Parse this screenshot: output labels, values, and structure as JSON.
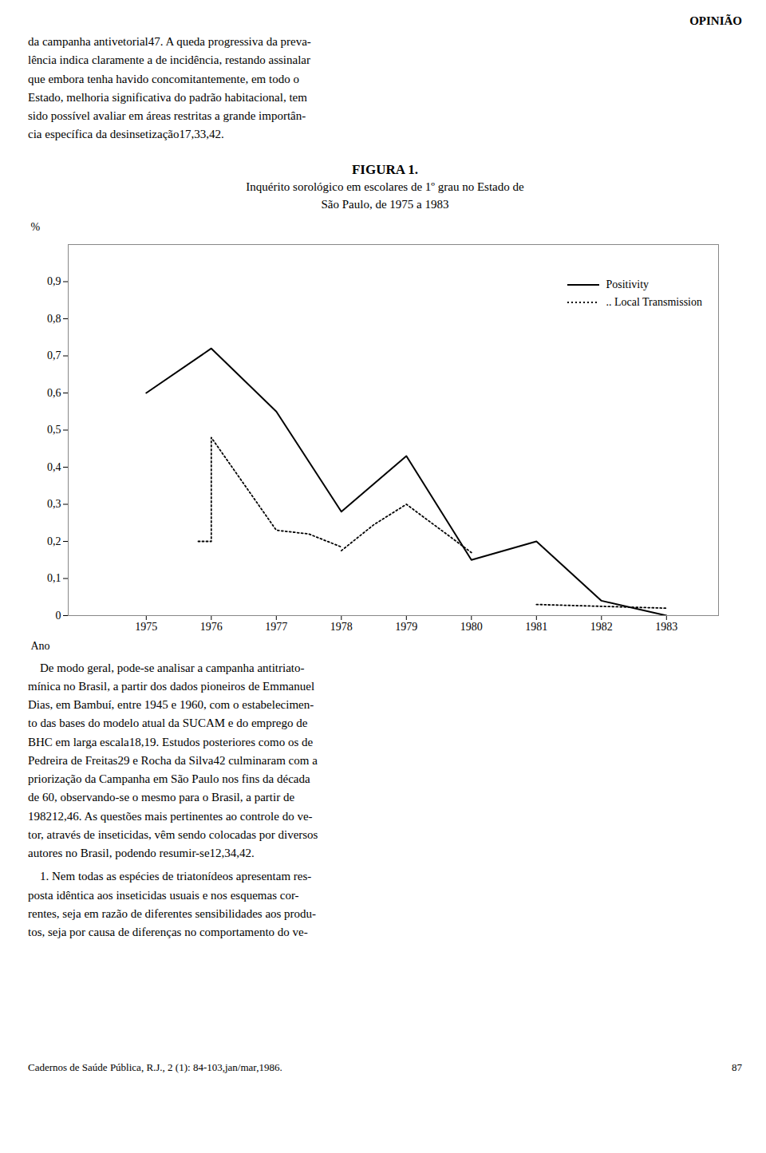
{
  "chart_data": {
    "type": "line",
    "title": "FIGURA 1.",
    "subtitle": [
      "Inquérito sorológico em escolares de 1º grau no Estado de",
      "São Paulo, de 1975 a 1983"
    ],
    "y_label": "%",
    "x_label": "Ano",
    "x": [
      1975,
      1976,
      1977,
      1978,
      1979,
      1980,
      1981,
      1982,
      1983
    ],
    "series": [
      {
        "name": "Positivity",
        "color": "#000000",
        "line_style": "solid",
        "values": [
          0.6,
          0.72,
          0.55,
          0.28,
          0.43,
          0.15,
          0.2,
          0.04,
          0.0
        ]
      },
      {
        "name": ".. Local Transmission",
        "color": "#000000",
        "line_style": "dotted",
        "x": [
          1975.8,
          1976.0,
          1976.0,
          1977.0,
          1977.5,
          1978.0,
          1978.0,
          1978.0,
          1978.5,
          1979.0,
          1979.5,
          1980.0,
          1981.0,
          1981.0,
          1982.0,
          1983.0
        ],
        "values": [
          0.2,
          0.2,
          0.48,
          0.23,
          0.22,
          0.185,
          null,
          0.175,
          0.245,
          0.3,
          0.235,
          0.17,
          null,
          0.03,
          0.025,
          0.02
        ]
      }
    ],
    "xlim": [
      1973.8,
      1983.8
    ],
    "xticks": [
      1975,
      1976,
      1977,
      1978,
      1979,
      1980,
      1981,
      1982,
      1983
    ],
    "ylim": [
      0,
      1.0
    ],
    "yticks": [
      0,
      {
        "value": 0.1,
        "label": "0,1"
      },
      {
        "value": 0.2,
        "label": "0,2"
      },
      {
        "value": 0.3,
        "label": "0,3"
      },
      {
        "value": 0.4,
        "label": "0,4"
      },
      {
        "value": 0.5,
        "label": "0,5"
      },
      {
        "value": 0.6,
        "label": "0,6"
      },
      {
        "value": 0.7,
        "label": "0,7"
      },
      {
        "value": 0.8,
        "label": "0,8"
      },
      {
        "value": 0.9,
        "label": "0,9"
      }
    ],
    "legend": "upper right",
    "annotations": [
      "OPINIÃO",
      "da campanha antivetorial47. A queda progressiva da preva-\nlência indica claramente a de incidência, restando assinalar\nque embora tenha havido concomitantemente, em todo o\nEstado, melhoria significativa do padrão habitacional, tem\nsido possível avaliar em áreas restritas a grande importân-\ncia específica da desinsetização17,33,42.",
      "    De modo geral, pode-se analisar a campanha antitriato-\nmínica no Brasil, a partir dos dados pioneiros de Emmanuel\nDias, em Bambuí, entre 1945 e 1960, com o estabelecimen-\nto das bases do modelo atual da SUCAM e do emprego de\nBHC em larga escala18,19. Estudos posteriores como os de\nPedreira de Freitas29 e Rocha da Silva42 culminaram com a\npriorização da Campanha em São Paulo nos fins da década\nde 60, observando-se o mesmo para o Brasil, a partir de\n198212,46. As questões mais pertinentes ao controle do ve-\ntor, através de inseticidas, vêm sendo colocadas por diversos\nautores no Brasil, podendo resumir-se12,34,42.",
      "    1. Nem todas as espécies de triatonídeos apresentam res-\nposta idêntica aos inseticidas usuais e nos esquemas cor-\nrentes, seja em razão de diferentes sensibilidades aos produ-\ntos, seja por causa de diferenças no comportamento do ve-",
      "Cadernos de Saúde Pública, R.J., 2 (1): 84-103,jan/mar,1986.",
      "87"
    ]
  }
}
